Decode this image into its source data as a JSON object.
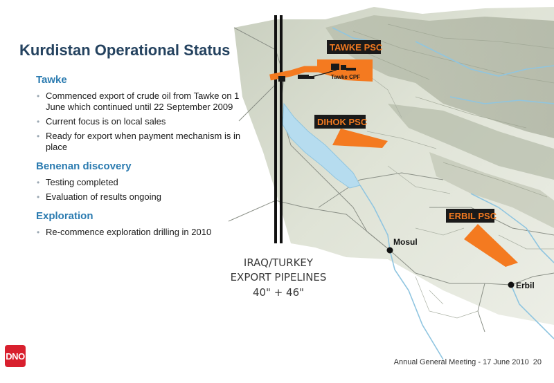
{
  "slide": {
    "title": "Kurdistan Operational Status",
    "sections": [
      {
        "heading": "Tawke",
        "bullets": [
          "Commenced export of crude oil from Tawke on 1 June which continued until 22 September 2009",
          "Current focus is on local sales",
          "Ready for export when payment mechanism is in place"
        ]
      },
      {
        "heading": "Benenan discovery",
        "bullets": [
          "Testing completed",
          "Evaluation of results ongoing"
        ]
      },
      {
        "heading": "Exploration",
        "bullets": [
          "Re-commence exploration drilling in 2010"
        ]
      }
    ]
  },
  "map": {
    "psc_labels": {
      "tawke": "TAWKE PSC",
      "dihok": "DIHOK PSC",
      "erbil": "ERBIL PSC"
    },
    "facility_label": "Tawke CPF",
    "cities": {
      "mosul": "Mosul",
      "erbil": "Erbil"
    },
    "pipeline_caption": {
      "line1": "IRAQ/TURKEY",
      "line2": "EXPORT PIPELINES",
      "line3": "40\" + 46\""
    },
    "colors": {
      "block_orange": "#f47a20",
      "label_black": "#1a1a1a",
      "water_blue": "#b6dcef",
      "terrain": "#dfe3d6"
    }
  },
  "footer": {
    "logo_text": "DNO",
    "meeting": "Annual General Meeting - 17 June 2010",
    "page_number": "20"
  }
}
